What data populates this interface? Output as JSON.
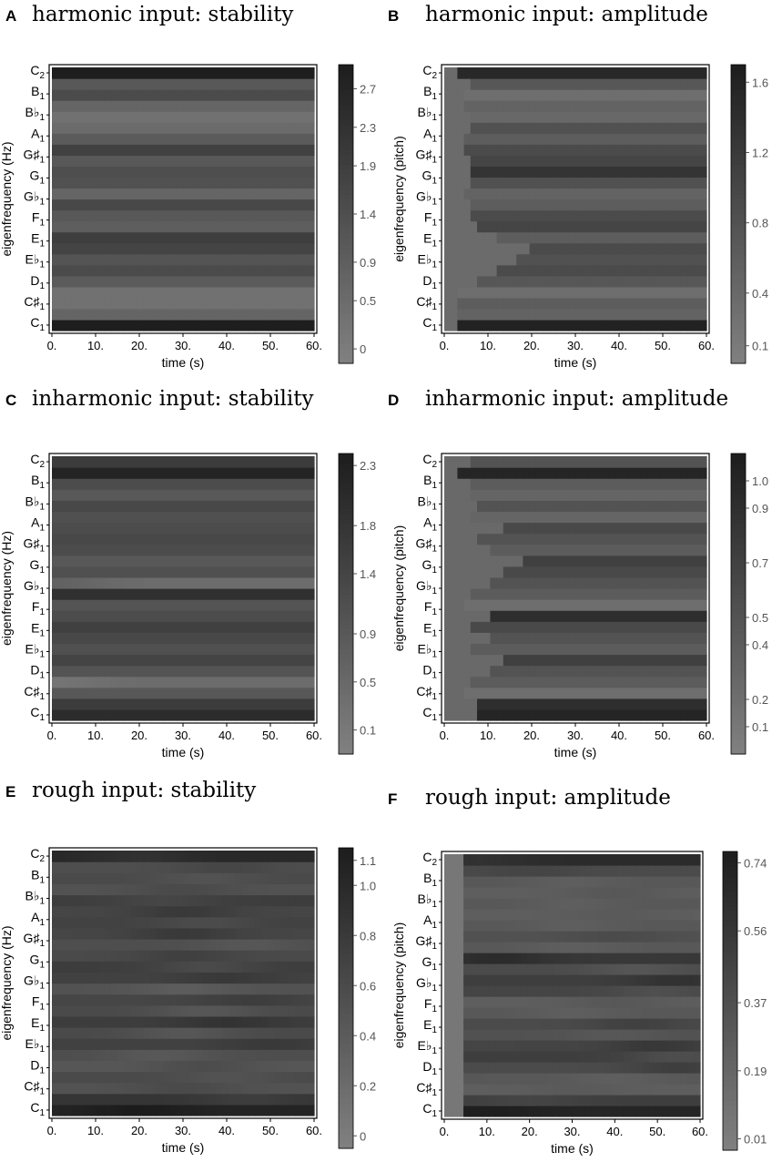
{
  "chart_data": [
    {
      "letter": "A",
      "title": "harmonic input: stability",
      "type": "heatmap",
      "xlabel": "time (s)",
      "ylabel": "eigenfrequency (Hz)",
      "xticks": [
        "0.",
        "10.",
        "20.",
        "30.",
        "40.",
        "50.",
        "60."
      ],
      "xlim": [
        0,
        60
      ],
      "yticks": [
        "C1",
        "C#1",
        "D1",
        "Eb1",
        "E1",
        "F1",
        "Gb1",
        "G1",
        "G#1",
        "A1",
        "Bb1",
        "B1",
        "C2"
      ],
      "colorbar": {
        "ticks": [
          "0",
          "0.5",
          "0.9",
          "1.4",
          "1.9",
          "2.3",
          "2.7"
        ],
        "tick_values": [
          0,
          0.5,
          0.9,
          1.4,
          1.9,
          2.3,
          2.7
        ],
        "range": [
          -0.15,
          2.95
        ]
      },
      "rows": [
        2.9,
        0.7,
        0.3,
        0.3,
        1.0,
        1.5,
        1.2,
        1.7,
        1.9,
        0.9,
        1.1,
        1.6,
        0.7,
        1.3,
        1.4,
        1.1,
        1.8,
        1.0,
        0.5,
        0.3,
        0.7,
        1.5,
        1.1,
        2.9
      ],
      "row_amp": [
        0,
        0,
        0,
        0,
        0,
        0,
        0,
        0,
        0,
        0,
        0,
        0,
        0,
        0,
        0,
        0,
        0,
        0,
        0,
        0,
        0,
        0,
        0,
        0
      ],
      "row_t": [
        0,
        0,
        0,
        0,
        0,
        0,
        0,
        0,
        0,
        0,
        0,
        0,
        0,
        0,
        0,
        0,
        0,
        0,
        0,
        0,
        0,
        0,
        0,
        0
      ],
      "onset": [
        0,
        0,
        0,
        0,
        0,
        0,
        0,
        0,
        0,
        0,
        0,
        0,
        0,
        0,
        0,
        0,
        0,
        0,
        0,
        0,
        0,
        0,
        0,
        0
      ],
      "onset_value": 0.3
    },
    {
      "letter": "B",
      "title": "harmonic input: amplitude",
      "type": "heatmap",
      "xlabel": "time (s)",
      "ylabel": "eigenfrequency (pitch)",
      "xticks": [
        "0.",
        "10.",
        "20.",
        "30.",
        "40.",
        "50.",
        "60."
      ],
      "xlim": [
        0,
        60
      ],
      "yticks": [
        "C1",
        "C#1",
        "D1",
        "Eb1",
        "E1",
        "F1",
        "Gb1",
        "G1",
        "G#1",
        "A1",
        "Bb1",
        "B1",
        "C2"
      ],
      "colorbar": {
        "ticks": [
          "0.1",
          "0.4",
          "0.8",
          "1.2",
          "1.6"
        ],
        "tick_values": [
          0.1,
          0.4,
          0.8,
          1.2,
          1.6
        ],
        "range": [
          0.0,
          1.7
        ]
      },
      "rows": [
        1.6,
        0.5,
        0.6,
        0.3,
        0.7,
        0.9,
        0.8,
        0.9,
        0.6,
        1.0,
        0.9,
        0.6,
        0.5,
        0.8,
        1.3,
        1.0,
        0.9,
        0.6,
        0.8,
        0.4,
        0.5,
        0.3,
        0.7,
        1.5
      ],
      "row_amp": [
        0,
        0,
        0,
        0,
        0,
        0,
        0,
        0,
        0,
        0,
        0,
        0,
        0,
        0,
        0,
        0,
        0,
        0,
        0,
        0,
        0,
        0,
        0,
        0
      ],
      "row_t": [
        0,
        0,
        0,
        0,
        0,
        0,
        0,
        0,
        0,
        0,
        0,
        0,
        0,
        0,
        0,
        0,
        0,
        0,
        0,
        0,
        0,
        0,
        0,
        0
      ],
      "onset": [
        3,
        3,
        3,
        3,
        8,
        12,
        16,
        20,
        12,
        8,
        6,
        6,
        4,
        6,
        6,
        6,
        4,
        4,
        6,
        6,
        4,
        4,
        6,
        3
      ],
      "onset_value": 0.35
    },
    {
      "letter": "C",
      "title": "inharmonic input: stability",
      "type": "heatmap",
      "xlabel": "time (s)",
      "ylabel": "eigenfrequency (Hz)",
      "xticks": [
        "0.",
        "10.",
        "20.",
        "30.",
        "40.",
        "50.",
        "60."
      ],
      "xlim": [
        0,
        60
      ],
      "yticks": [
        "C1",
        "C#1",
        "D1",
        "Eb1",
        "E1",
        "F1",
        "Gb1",
        "G1",
        "G#1",
        "A1",
        "Bb1",
        "B1",
        "C2"
      ],
      "colorbar": {
        "ticks": [
          "0.1",
          "0.5",
          "0.9",
          "1.4",
          "1.8",
          "2.3"
        ],
        "tick_values": [
          0.1,
          0.5,
          0.9,
          1.4,
          1.8,
          2.3
        ],
        "range": [
          -0.1,
          2.4
        ]
      },
      "rows": [
        2.0,
        1.6,
        0.9,
        0.4,
        1.0,
        1.4,
        1.1,
        1.3,
        1.5,
        1.2,
        1.0,
        1.9,
        0.4,
        1.1,
        0.9,
        1.2,
        1.3,
        1.2,
        1.1,
        1.3,
        0.9,
        1.2,
        2.2,
        1.6
      ],
      "row_amp": [
        0,
        0,
        0,
        0.2,
        0,
        0,
        0,
        0,
        0,
        0,
        0,
        0,
        0.25,
        0,
        0,
        0,
        0,
        0,
        0,
        0,
        0,
        0,
        0,
        0
      ],
      "row_t": [
        0,
        0,
        0,
        0,
        0,
        0,
        0,
        0,
        0,
        0,
        0,
        0,
        0,
        0,
        0,
        0,
        0,
        0,
        0,
        0,
        0,
        0,
        0,
        0
      ],
      "onset": [
        0,
        0,
        0,
        0,
        0,
        0,
        0,
        0,
        0,
        0,
        0,
        0,
        0,
        0,
        0,
        0,
        0,
        0,
        0,
        0,
        0,
        0,
        0,
        0
      ],
      "onset_value": 0.3
    },
    {
      "letter": "D",
      "title": "inharmonic input: amplitude",
      "type": "heatmap",
      "xlabel": "time (s)",
      "ylabel": "eigenfrequency (pitch)",
      "xticks": [
        "0.",
        "10.",
        "20.",
        "30.",
        "40.",
        "50.",
        "60."
      ],
      "xlim": [
        0,
        60
      ],
      "yticks": [
        "C1",
        "C#1",
        "D1",
        "Eb1",
        "E1",
        "F1",
        "Gb1",
        "G1",
        "G#1",
        "A1",
        "Bb1",
        "B1",
        "C2"
      ],
      "colorbar": {
        "ticks": [
          "0.1",
          "0.2",
          "0.4",
          "0.5",
          "0.7",
          "0.9",
          "1.0"
        ],
        "tick_values": [
          0.1,
          0.2,
          0.4,
          0.5,
          0.7,
          0.9,
          1.0
        ],
        "range": [
          0.0,
          1.1
        ]
      },
      "rows": [
        1.0,
        0.9,
        0.2,
        0.4,
        0.5,
        0.7,
        0.4,
        0.5,
        0.6,
        0.9,
        0.2,
        0.4,
        0.5,
        0.6,
        0.7,
        0.4,
        0.5,
        0.6,
        0.3,
        0.5,
        0.3,
        0.4,
        1.0,
        0.5
      ],
      "row_amp": [
        0,
        0,
        0,
        0,
        0,
        0,
        0,
        0,
        0,
        0,
        0,
        0,
        0,
        0,
        0,
        0,
        0,
        0,
        0,
        0,
        0,
        0,
        0,
        0
      ],
      "row_t": [
        0,
        0,
        0,
        0,
        0,
        0,
        0,
        0,
        0,
        0,
        0,
        0,
        0,
        0,
        0,
        0,
        0,
        0,
        0,
        0,
        0,
        0,
        0,
        0
      ],
      "onset": [
        8,
        8,
        4,
        6,
        10,
        14,
        6,
        10,
        6,
        10,
        4,
        6,
        10,
        14,
        18,
        10,
        8,
        14,
        6,
        8,
        6,
        6,
        3,
        6
      ],
      "onset_value": 0.25
    },
    {
      "letter": "E",
      "title": "rough input: stability",
      "type": "heatmap",
      "xlabel": "time (s)",
      "ylabel": "eigenfrequency (Hz)",
      "xticks": [
        "0.",
        "10.",
        "20.",
        "30.",
        "40.",
        "50.",
        "60."
      ],
      "xlim": [
        0,
        60
      ],
      "yticks": [
        "C1",
        "C#1",
        "D1",
        "Eb1",
        "E1",
        "F1",
        "Gb1",
        "G1",
        "G#1",
        "A1",
        "Bb1",
        "B1",
        "C2"
      ],
      "colorbar": {
        "ticks": [
          "0",
          "0.2",
          "0.4",
          "0.6",
          "0.8",
          "1.0",
          "1.1"
        ],
        "tick_values": [
          0,
          0.2,
          0.4,
          0.6,
          0.8,
          1.0,
          1.1
        ],
        "range": [
          -0.05,
          1.15
        ]
      },
      "rows": [
        1.05,
        0.85,
        0.5,
        0.6,
        0.45,
        0.55,
        0.7,
        0.6,
        0.75,
        0.6,
        0.65,
        0.5,
        0.7,
        0.75,
        0.6,
        0.55,
        0.65,
        0.7,
        0.65,
        0.75,
        0.5,
        0.6,
        0.55,
        1.0
      ],
      "row_amp": [
        0.1,
        0.1,
        0.1,
        0.1,
        0.12,
        0.12,
        0.1,
        0.15,
        0.12,
        0.15,
        0.1,
        0.12,
        0.1,
        0.15,
        0.12,
        0.1,
        0.15,
        0.12,
        0.15,
        0.1,
        0.1,
        0.1,
        0.1,
        0.1
      ],
      "row_t": [
        20,
        45,
        30,
        40,
        35,
        25,
        50,
        30,
        40,
        35,
        45,
        30,
        40,
        35,
        30,
        45,
        30,
        35,
        30,
        25,
        30,
        35,
        40,
        20
      ],
      "onset": [
        0,
        0,
        0,
        0,
        0,
        0,
        0,
        0,
        0,
        0,
        0,
        0,
        0,
        0,
        0,
        0,
        0,
        0,
        0,
        0,
        0,
        0,
        0,
        0
      ],
      "onset_value": 0.3
    },
    {
      "letter": "F",
      "title": "rough input: amplitude",
      "type": "heatmap",
      "xlabel": "time (s)",
      "ylabel": "eigenfrequency (pitch)",
      "xticks": [
        "0.",
        "10.",
        "20.",
        "30.",
        "40.",
        "50.",
        "60."
      ],
      "xlim": [
        0,
        60
      ],
      "yticks": [
        "C1",
        "C#1",
        "D1",
        "Eb1",
        "E1",
        "F1",
        "Gb1",
        "G1",
        "G#1",
        "A1",
        "Bb1",
        "B1",
        "C2"
      ],
      "colorbar": {
        "ticks": [
          "0.01",
          "0.19",
          "0.37",
          "0.56",
          "0.74"
        ],
        "tick_values": [
          0.01,
          0.19,
          0.37,
          0.56,
          0.74
        ],
        "range": [
          -0.02,
          0.77
        ]
      },
      "rows": [
        0.7,
        0.5,
        0.25,
        0.3,
        0.4,
        0.5,
        0.45,
        0.35,
        0.4,
        0.3,
        0.25,
        0.45,
        0.5,
        0.4,
        0.55,
        0.3,
        0.35,
        0.3,
        0.25,
        0.3,
        0.25,
        0.3,
        0.4,
        0.65
      ],
      "row_amp": [
        0.05,
        0.05,
        0.03,
        0.05,
        0.1,
        0.12,
        0.1,
        0.05,
        0.08,
        0.05,
        0.05,
        0.08,
        0.1,
        0.08,
        0.1,
        0.05,
        0.05,
        0.05,
        0.03,
        0.05,
        0.05,
        0.05,
        0.05,
        0.05
      ],
      "row_t": [
        10,
        20,
        30,
        40,
        55,
        55,
        50,
        40,
        45,
        30,
        40,
        50,
        55,
        45,
        12,
        30,
        40,
        30,
        40,
        30,
        40,
        30,
        20,
        8
      ],
      "onset": [
        4,
        4,
        4,
        4,
        4,
        4,
        4,
        4,
        4,
        4,
        4,
        4,
        4,
        4,
        4,
        4,
        4,
        4,
        4,
        4,
        4,
        4,
        4,
        4
      ],
      "onset_value": 0.05
    }
  ]
}
